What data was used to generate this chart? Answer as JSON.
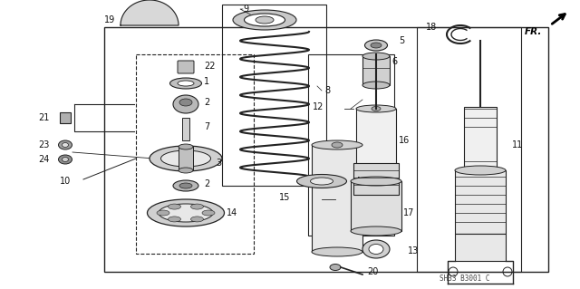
{
  "bg_color": "#ffffff",
  "line_color": "#222222",
  "text_color": "#111111",
  "watermark": "SH33 B3001 C",
  "figsize": [
    6.4,
    3.19
  ],
  "dpi": 100
}
